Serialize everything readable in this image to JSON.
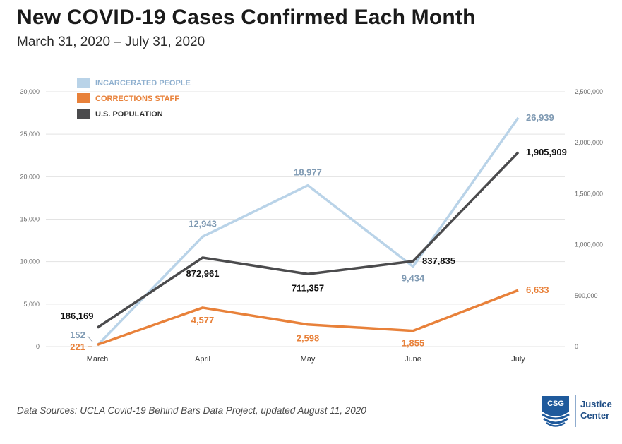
{
  "title": "New COVID-19 Cases Confirmed Each Month",
  "subtitle": "March 31, 2020 – July 31, 2020",
  "source": "Data Sources: UCLA Covid-19 Behind Bars Data Project, updated August 11, 2020",
  "logo": {
    "mark": "CSG",
    "line1": "Justice",
    "line2": "Center"
  },
  "colors": {
    "incarcerated": "#b9d3e8",
    "incarcerated_label": "#7f9ab3",
    "staff": "#e8813a",
    "population": "#4b4b4d"
  },
  "chart_data": {
    "type": "line",
    "categories": [
      "March",
      "April",
      "May",
      "June",
      "July"
    ],
    "y_left": {
      "ylim": [
        0,
        30000
      ],
      "ticks": [
        "0",
        "5,000",
        "10,000",
        "15,000",
        "20,000",
        "25,000",
        "30,000"
      ]
    },
    "y_right": {
      "ylim": [
        0,
        2500000
      ],
      "ticks": [
        "0",
        "500,000",
        "1,000,000",
        "1,500,000",
        "2,000,000",
        "2,500,000"
      ]
    },
    "legend_position": "top-left",
    "grid": true,
    "series": [
      {
        "name": "INCARCERATED PEOPLE",
        "axis": "left",
        "color": "#b9d3e8",
        "values": [
          152,
          12943,
          18977,
          9434,
          26939
        ],
        "labels": [
          "152",
          "12,943",
          "18,977",
          "9,434",
          "26,939"
        ]
      },
      {
        "name": "CORRECTIONS STAFF",
        "axis": "left",
        "color": "#e8813a",
        "values": [
          221,
          4577,
          2598,
          1855,
          6633
        ],
        "labels": [
          "221",
          "4,577",
          "2,598",
          "1,855",
          "6,633"
        ]
      },
      {
        "name": "U.S. POPULATION",
        "axis": "right",
        "color": "#4b4b4d",
        "values": [
          186169,
          872961,
          711357,
          837835,
          1905909
        ],
        "labels": [
          "186,169",
          "872,961",
          "711,357",
          "837,835",
          "1,905,909"
        ]
      }
    ]
  }
}
